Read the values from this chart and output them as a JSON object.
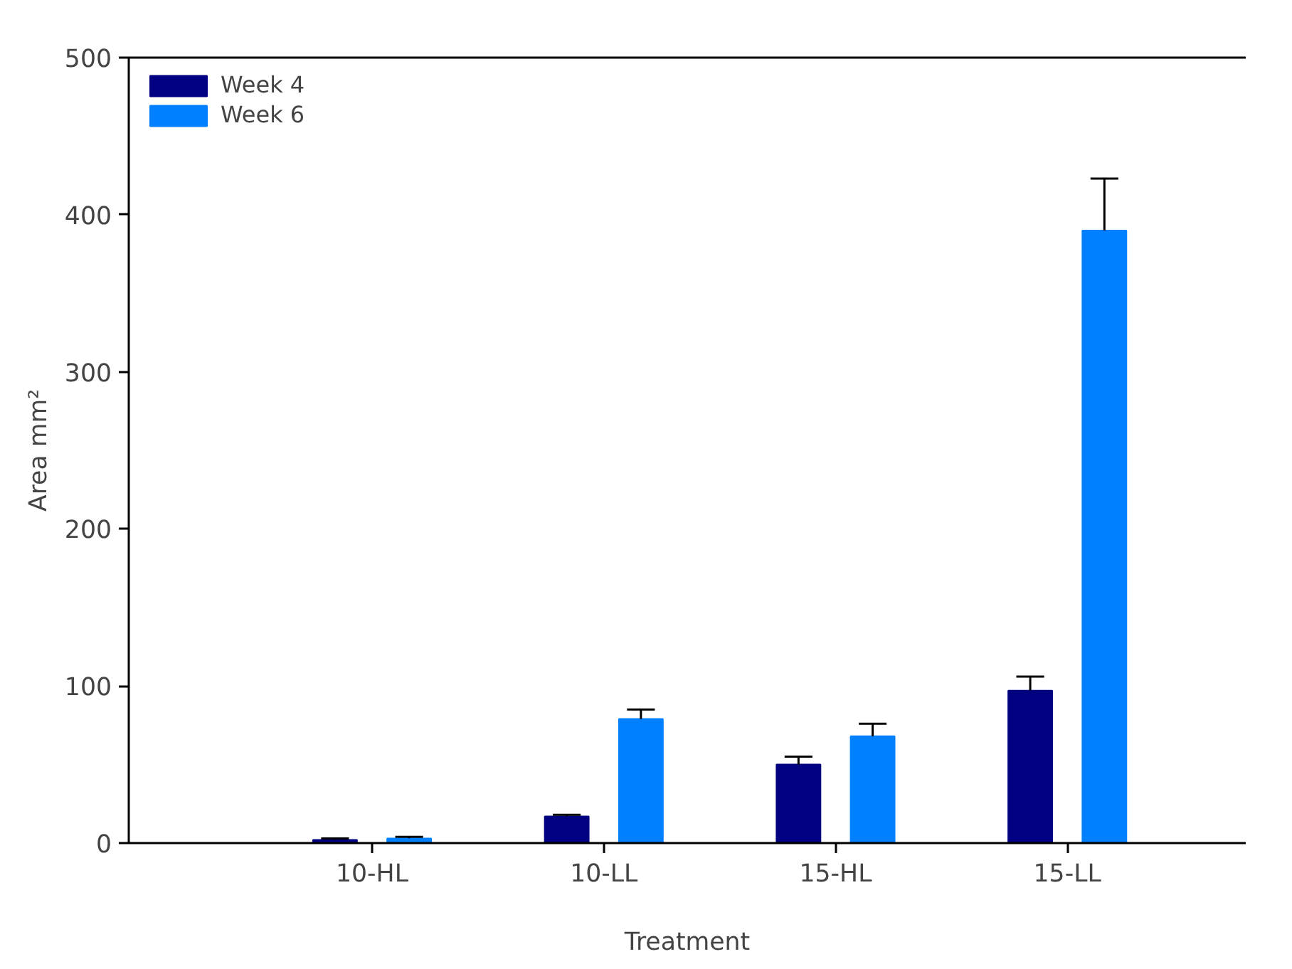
{
  "chart_data": {
    "type": "bar",
    "xlabel": "Treatment",
    "ylabel": "Area mm²",
    "categories": [
      "10-HL",
      "10-LL",
      "15-HL",
      "15-LL"
    ],
    "series": [
      {
        "name": "Week 4",
        "color": "#000080",
        "values": [
          2,
          17,
          50,
          97
        ],
        "errors": [
          [
            2,
            3
          ],
          [
            17,
            18
          ],
          [
            50,
            55
          ],
          [
            97,
            106
          ]
        ]
      },
      {
        "name": "Week 6",
        "color": "#0080ff",
        "values": [
          3,
          79,
          68,
          390
        ],
        "errors": [
          [
            3,
            4
          ],
          [
            79,
            85
          ],
          [
            68,
            76
          ],
          [
            390,
            423
          ]
        ]
      }
    ],
    "ylim": [
      0,
      500
    ],
    "yticks": [
      0,
      100,
      200,
      300,
      400,
      500
    ],
    "grid": false,
    "legend": "top left"
  }
}
